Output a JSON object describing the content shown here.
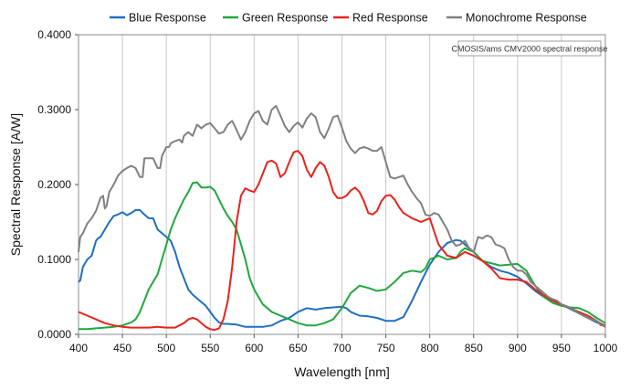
{
  "chart_data": {
    "type": "line",
    "title": "",
    "xlabel": "Wavelength [nm]",
    "ylabel": "Spectral Response [A/W]",
    "xlim": [
      400,
      1000
    ],
    "ylim": [
      0,
      0.4
    ],
    "xticks": [
      400,
      450,
      500,
      550,
      600,
      650,
      700,
      750,
      800,
      850,
      900,
      950,
      1000
    ],
    "yticks": [
      0,
      0.1,
      0.2,
      0.3,
      0.4
    ],
    "ytick_labels": [
      "0.0000",
      "0.1000",
      "0.2000",
      "0.3000",
      "0.4000"
    ],
    "grid": "vertical",
    "legend_position": "top",
    "annotation": "CMOSIS/ams CMV2000 spectral response",
    "series": [
      {
        "name": "Blue Response",
        "color": "#1f6fc0",
        "x": [
          400,
          402,
          405,
          410,
          415,
          420,
          422,
          425,
          430,
          435,
          440,
          445,
          450,
          455,
          460,
          465,
          470,
          475,
          480,
          485,
          490,
          495,
          500,
          505,
          510,
          515,
          520,
          525,
          530,
          535,
          540,
          545,
          550,
          555,
          560,
          565,
          570,
          580,
          590,
          600,
          610,
          620,
          625,
          630,
          640,
          650,
          660,
          670,
          680,
          690,
          700,
          705,
          710,
          720,
          730,
          740,
          750,
          760,
          770,
          780,
          790,
          800,
          810,
          820,
          830,
          835,
          840,
          850,
          860,
          870,
          880,
          890,
          900,
          910,
          920,
          930,
          940,
          950,
          960,
          970,
          980,
          990,
          1000
        ],
        "y": [
          0.07,
          0.072,
          0.09,
          0.1,
          0.105,
          0.125,
          0.128,
          0.13,
          0.14,
          0.15,
          0.158,
          0.16,
          0.163,
          0.159,
          0.162,
          0.166,
          0.166,
          0.16,
          0.155,
          0.155,
          0.14,
          0.135,
          0.13,
          0.125,
          0.11,
          0.09,
          0.075,
          0.06,
          0.053,
          0.048,
          0.043,
          0.038,
          0.03,
          0.022,
          0.016,
          0.014,
          0.014,
          0.013,
          0.01,
          0.01,
          0.01,
          0.012,
          0.015,
          0.018,
          0.022,
          0.03,
          0.035,
          0.033,
          0.035,
          0.036,
          0.037,
          0.035,
          0.03,
          0.025,
          0.024,
          0.022,
          0.018,
          0.018,
          0.023,
          0.045,
          0.07,
          0.093,
          0.11,
          0.122,
          0.126,
          0.125,
          0.12,
          0.11,
          0.098,
          0.09,
          0.085,
          0.082,
          0.077,
          0.068,
          0.058,
          0.05,
          0.045,
          0.04,
          0.034,
          0.028,
          0.022,
          0.016,
          0.012
        ]
      },
      {
        "name": "Green Response",
        "color": "#1fa83c",
        "x": [
          400,
          410,
          420,
          430,
          440,
          450,
          460,
          465,
          470,
          475,
          480,
          485,
          490,
          495,
          500,
          505,
          510,
          515,
          520,
          525,
          530,
          535,
          540,
          545,
          550,
          555,
          560,
          565,
          570,
          575,
          580,
          585,
          590,
          595,
          600,
          605,
          610,
          620,
          630,
          640,
          650,
          660,
          670,
          680,
          690,
          700,
          710,
          720,
          730,
          740,
          750,
          760,
          770,
          780,
          790,
          795,
          800,
          810,
          820,
          830,
          835,
          840,
          850,
          860,
          870,
          880,
          890,
          900,
          910,
          920,
          930,
          940,
          950,
          960,
          970,
          980,
          990,
          1000
        ],
        "y": [
          0.007,
          0.007,
          0.008,
          0.009,
          0.01,
          0.012,
          0.016,
          0.02,
          0.03,
          0.045,
          0.06,
          0.07,
          0.08,
          0.1,
          0.12,
          0.14,
          0.155,
          0.168,
          0.18,
          0.19,
          0.202,
          0.203,
          0.196,
          0.196,
          0.197,
          0.192,
          0.18,
          0.168,
          0.158,
          0.15,
          0.14,
          0.12,
          0.1,
          0.075,
          0.06,
          0.05,
          0.04,
          0.03,
          0.025,
          0.02,
          0.015,
          0.012,
          0.012,
          0.015,
          0.02,
          0.035,
          0.055,
          0.065,
          0.062,
          0.058,
          0.06,
          0.07,
          0.082,
          0.085,
          0.083,
          0.088,
          0.1,
          0.105,
          0.1,
          0.102,
          0.11,
          0.115,
          0.11,
          0.098,
          0.095,
          0.092,
          0.093,
          0.094,
          0.085,
          0.065,
          0.05,
          0.042,
          0.038,
          0.036,
          0.035,
          0.03,
          0.022,
          0.015
        ]
      },
      {
        "name": "Red Response",
        "color": "#e8231c",
        "x": [
          400,
          410,
          420,
          430,
          440,
          450,
          460,
          470,
          480,
          490,
          500,
          510,
          520,
          525,
          530,
          535,
          540,
          545,
          550,
          555,
          560,
          565,
          570,
          575,
          580,
          585,
          590,
          595,
          600,
          605,
          610,
          615,
          620,
          625,
          630,
          635,
          640,
          645,
          650,
          655,
          660,
          665,
          670,
          675,
          680,
          685,
          690,
          695,
          700,
          705,
          710,
          715,
          720,
          725,
          730,
          735,
          740,
          745,
          750,
          755,
          760,
          765,
          770,
          780,
          790,
          800,
          810,
          820,
          830,
          840,
          850,
          860,
          870,
          880,
          890,
          900,
          910,
          920,
          930,
          940,
          950,
          960,
          970,
          980,
          990,
          1000
        ],
        "y": [
          0.03,
          0.025,
          0.02,
          0.015,
          0.012,
          0.01,
          0.009,
          0.009,
          0.009,
          0.01,
          0.009,
          0.009,
          0.015,
          0.02,
          0.022,
          0.02,
          0.015,
          0.01,
          0.007,
          0.006,
          0.008,
          0.02,
          0.045,
          0.09,
          0.15,
          0.185,
          0.195,
          0.192,
          0.19,
          0.2,
          0.215,
          0.23,
          0.232,
          0.228,
          0.21,
          0.215,
          0.23,
          0.243,
          0.245,
          0.238,
          0.22,
          0.21,
          0.222,
          0.23,
          0.225,
          0.21,
          0.19,
          0.182,
          0.182,
          0.185,
          0.192,
          0.196,
          0.19,
          0.178,
          0.162,
          0.16,
          0.165,
          0.178,
          0.185,
          0.186,
          0.18,
          0.17,
          0.162,
          0.155,
          0.15,
          0.155,
          0.12,
          0.105,
          0.102,
          0.11,
          0.105,
          0.098,
          0.088,
          0.075,
          0.073,
          0.073,
          0.07,
          0.06,
          0.052,
          0.045,
          0.04,
          0.035,
          0.03,
          0.025,
          0.018,
          0.01
        ]
      },
      {
        "name": "Monochrome Response",
        "color": "#808080",
        "x": [
          400,
          402,
          405,
          410,
          415,
          420,
          425,
          428,
          430,
          432,
          435,
          440,
          445,
          450,
          455,
          460,
          465,
          470,
          473,
          475,
          480,
          485,
          490,
          493,
          495,
          500,
          503,
          505,
          510,
          515,
          518,
          520,
          525,
          530,
          535,
          540,
          545,
          550,
          555,
          560,
          565,
          570,
          575,
          580,
          585,
          590,
          595,
          600,
          605,
          610,
          615,
          620,
          625,
          630,
          635,
          640,
          645,
          650,
          655,
          660,
          665,
          670,
          675,
          680,
          685,
          690,
          695,
          700,
          705,
          710,
          715,
          720,
          725,
          730,
          735,
          740,
          745,
          750,
          755,
          760,
          765,
          770,
          775,
          780,
          785,
          790,
          795,
          800,
          805,
          810,
          815,
          820,
          825,
          830,
          835,
          840,
          845,
          850,
          855,
          860,
          865,
          870,
          875,
          880,
          885,
          890,
          895,
          900,
          905,
          910,
          915,
          920,
          925,
          930,
          935,
          940,
          945,
          950,
          955,
          960,
          965,
          970,
          975,
          980,
          985,
          990,
          995,
          1000
        ],
        "y": [
          0.11,
          0.13,
          0.135,
          0.148,
          0.155,
          0.165,
          0.182,
          0.185,
          0.168,
          0.172,
          0.19,
          0.2,
          0.212,
          0.218,
          0.222,
          0.225,
          0.222,
          0.21,
          0.21,
          0.235,
          0.235,
          0.235,
          0.222,
          0.222,
          0.238,
          0.25,
          0.25,
          0.255,
          0.258,
          0.26,
          0.256,
          0.265,
          0.27,
          0.265,
          0.28,
          0.275,
          0.28,
          0.282,
          0.275,
          0.268,
          0.27,
          0.28,
          0.285,
          0.273,
          0.26,
          0.27,
          0.285,
          0.295,
          0.298,
          0.285,
          0.28,
          0.3,
          0.305,
          0.292,
          0.278,
          0.27,
          0.278,
          0.283,
          0.276,
          0.288,
          0.295,
          0.29,
          0.27,
          0.262,
          0.275,
          0.29,
          0.292,
          0.276,
          0.258,
          0.248,
          0.242,
          0.248,
          0.25,
          0.248,
          0.245,
          0.245,
          0.25,
          0.23,
          0.21,
          0.208,
          0.21,
          0.212,
          0.2,
          0.19,
          0.182,
          0.175,
          0.16,
          0.158,
          0.162,
          0.16,
          0.15,
          0.14,
          0.125,
          0.118,
          0.12,
          0.125,
          0.115,
          0.11,
          0.13,
          0.128,
          0.132,
          0.13,
          0.12,
          0.118,
          0.115,
          0.1,
          0.09,
          0.085,
          0.085,
          0.08,
          0.07,
          0.065,
          0.06,
          0.055,
          0.05,
          0.047,
          0.045,
          0.04,
          0.038,
          0.035,
          0.032,
          0.028,
          0.025,
          0.022,
          0.02,
          0.018,
          0.012,
          0.012
        ]
      }
    ]
  }
}
